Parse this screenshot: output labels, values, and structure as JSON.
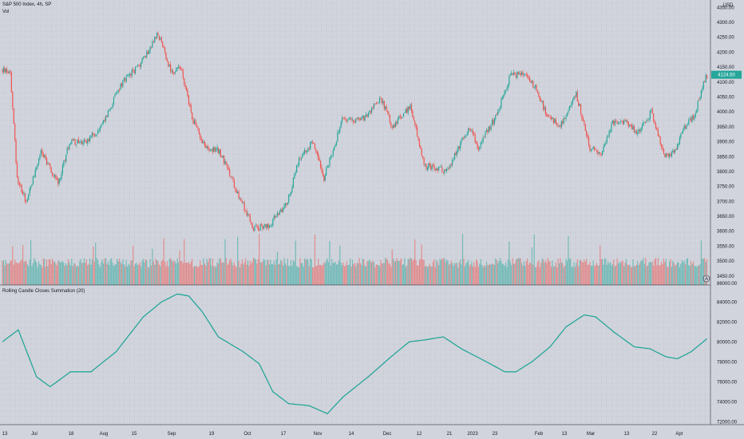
{
  "header": {
    "title": "S&P 500 Index, 4h, SP",
    "volume_label": "Vol"
  },
  "indicator_label": "Rolling Candle Closes Summation (20)",
  "currency": "USD",
  "price_tag": "4124.50",
  "colors": {
    "up": "#26a69a",
    "down": "#ef5350",
    "line": "#26a69a",
    "background": "#d1d4dc",
    "grid": "#aeb2bd",
    "price_tag": "#26a69a"
  },
  "chart_data": [
    {
      "type": "candlestick",
      "title": "S&P 500 Index, 4h, SP",
      "y_ticks": [
        "4350.00",
        "4300.00",
        "4250.00",
        "4200.00",
        "4150.00",
        "4100.00",
        "4050.00",
        "4000.00",
        "3950.00",
        "3900.00",
        "3850.00",
        "3800.00",
        "3750.00",
        "3700.00",
        "3650.00",
        "3600.00",
        "3550.00",
        "3500.00",
        "3450.00",
        "86000.00"
      ],
      "ylim": [
        3420,
        4375
      ],
      "x_ticks": [
        "13",
        "Jul",
        "18",
        "Aug",
        "15",
        "Sep",
        "19",
        "Oct",
        "17",
        "Nov",
        "14",
        "Dec",
        "12",
        "21",
        "2023",
        "23",
        "Feb",
        "13",
        "Mar",
        "13",
        "22",
        "Apr"
      ],
      "anchors": [
        [
          0,
          4140
        ],
        [
          8,
          4135
        ],
        [
          14,
          3780
        ],
        [
          22,
          3700
        ],
        [
          35,
          3870
        ],
        [
          50,
          3760
        ],
        [
          60,
          3900
        ],
        [
          75,
          3900
        ],
        [
          88,
          3950
        ],
        [
          105,
          4090
        ],
        [
          122,
          4160
        ],
        [
          138,
          4260
        ],
        [
          150,
          4130
        ],
        [
          158,
          4150
        ],
        [
          168,
          3980
        ],
        [
          180,
          3880
        ],
        [
          192,
          3870
        ],
        [
          208,
          3730
        ],
        [
          222,
          3610
        ],
        [
          236,
          3620
        ],
        [
          252,
          3700
        ],
        [
          262,
          3840
        ],
        [
          274,
          3900
        ],
        [
          284,
          3780
        ],
        [
          300,
          3970
        ],
        [
          320,
          3980
        ],
        [
          334,
          4050
        ],
        [
          344,
          3950
        ],
        [
          360,
          4020
        ],
        [
          372,
          3820
        ],
        [
          392,
          3800
        ],
        [
          412,
          3950
        ],
        [
          420,
          3880
        ],
        [
          436,
          3990
        ],
        [
          448,
          4120
        ],
        [
          460,
          4130
        ],
        [
          470,
          4080
        ],
        [
          480,
          3990
        ],
        [
          492,
          3950
        ],
        [
          506,
          4060
        ],
        [
          518,
          3880
        ],
        [
          528,
          3860
        ],
        [
          538,
          3960
        ],
        [
          548,
          3970
        ],
        [
          560,
          3930
        ],
        [
          572,
          4000
        ],
        [
          584,
          3850
        ],
        [
          594,
          3870
        ],
        [
          600,
          3940
        ],
        [
          610,
          3990
        ],
        [
          620,
          4120
        ]
      ],
      "price_tag": "4124.50",
      "volume_ylim": [
        0,
        86000
      ]
    },
    {
      "type": "line",
      "title": "Rolling Candle Closes Summation (20)",
      "y_ticks": [
        "84000.00",
        "82000.00",
        "80000.00",
        "78000.00",
        "76000.00",
        "74000.00",
        "72000.00"
      ],
      "ylim": [
        71700,
        85700
      ],
      "anchors": [
        [
          0,
          80000
        ],
        [
          14,
          81200
        ],
        [
          30,
          76500
        ],
        [
          42,
          75500
        ],
        [
          60,
          77000
        ],
        [
          78,
          77000
        ],
        [
          100,
          79000
        ],
        [
          124,
          82500
        ],
        [
          140,
          84000
        ],
        [
          154,
          84800
        ],
        [
          164,
          84600
        ],
        [
          176,
          83000
        ],
        [
          190,
          80500
        ],
        [
          212,
          79000
        ],
        [
          226,
          77800
        ],
        [
          238,
          75000
        ],
        [
          252,
          73800
        ],
        [
          270,
          73600
        ],
        [
          286,
          72800
        ],
        [
          300,
          74500
        ],
        [
          322,
          76500
        ],
        [
          342,
          78500
        ],
        [
          358,
          80000
        ],
        [
          372,
          80200
        ],
        [
          388,
          80500
        ],
        [
          404,
          79300
        ],
        [
          426,
          78000
        ],
        [
          442,
          77000
        ],
        [
          452,
          77000
        ],
        [
          466,
          78000
        ],
        [
          482,
          79500
        ],
        [
          496,
          81500
        ],
        [
          512,
          82700
        ],
        [
          522,
          82500
        ],
        [
          538,
          81000
        ],
        [
          556,
          79500
        ],
        [
          570,
          79300
        ],
        [
          584,
          78500
        ],
        [
          594,
          78300
        ],
        [
          606,
          79000
        ],
        [
          620,
          80300
        ]
      ]
    }
  ]
}
